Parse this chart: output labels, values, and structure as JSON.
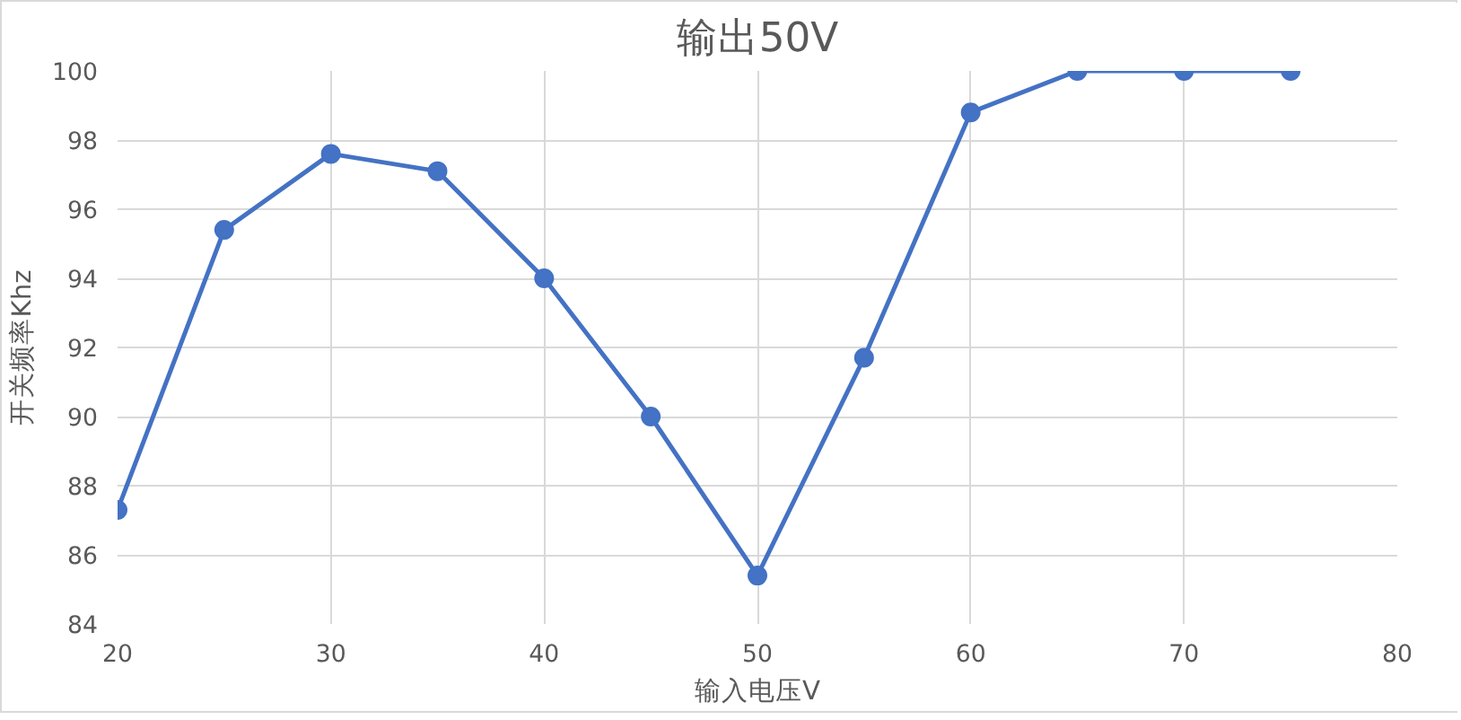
{
  "chart_data": {
    "type": "line",
    "title": "输出50V",
    "xlabel": "输入电压V",
    "ylabel": "开关频率Khz",
    "x": [
      20,
      25,
      30,
      35,
      40,
      45,
      50,
      55,
      60,
      65,
      70,
      75
    ],
    "series": [
      {
        "color": "#4472c4",
        "values": [
          87.3,
          95.4,
          97.6,
          97.1,
          94.0,
          90.0,
          85.4,
          91.7,
          98.8,
          100,
          100,
          100
        ]
      }
    ],
    "xlim": [
      20,
      80
    ],
    "xticks": [
      20,
      30,
      40,
      50,
      60,
      70,
      80
    ],
    "ylim": [
      84,
      100
    ],
    "yticks": [
      84,
      86,
      88,
      90,
      92,
      94,
      96,
      98,
      100
    ],
    "grid": true,
    "marker": "circle",
    "line_style": "solid"
  }
}
